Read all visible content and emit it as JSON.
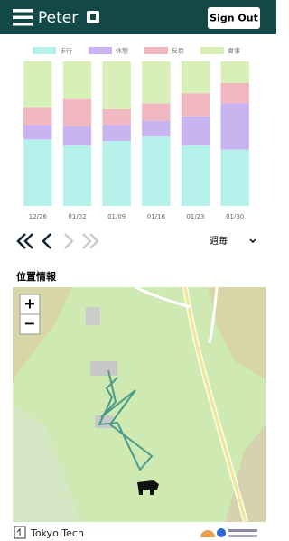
{
  "header": {
    "title": "Peter",
    "sign_out": "Sign Out"
  },
  "chart_data": {
    "type": "bar",
    "stacked": true,
    "categories": [
      "12/26",
      "01/02",
      "01/09",
      "01/16",
      "01/23",
      "01/30"
    ],
    "series": [
      {
        "name": "歩行",
        "color": "#b6f0ea",
        "values": [
          46,
          42,
          45,
          48,
          42,
          39
        ]
      },
      {
        "name": "休憩",
        "color": "#c8b4f0",
        "values": [
          10,
          13,
          11,
          11,
          20,
          32
        ]
      },
      {
        "name": "反芻",
        "color": "#f2b8c2",
        "values": [
          12,
          19,
          11,
          12,
          16,
          14
        ]
      },
      {
        "name": "食事",
        "color": "#d8f0b8",
        "values": [
          32,
          26,
          33,
          29,
          22,
          15
        ]
      }
    ]
  },
  "period_select": "週毎",
  "section_title": "位置情報",
  "map": {
    "zoom_in": "+",
    "zoom_out": "−"
  },
  "footer": {
    "label": "Tokyo Tech"
  }
}
